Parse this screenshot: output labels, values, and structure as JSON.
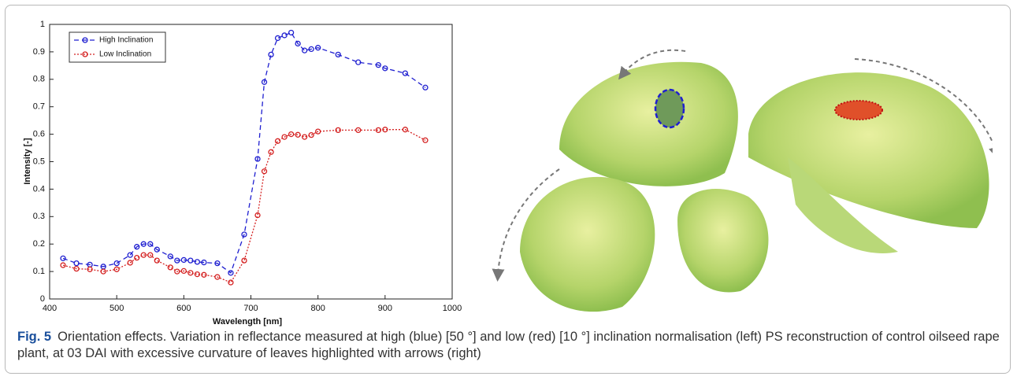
{
  "chart_data": {
    "type": "line",
    "xlabel": "Wavelength [nm]",
    "ylabel": "Intensity [-]",
    "x": [
      420,
      440,
      460,
      480,
      500,
      520,
      530,
      540,
      550,
      560,
      580,
      590,
      600,
      610,
      620,
      630,
      650,
      670,
      690,
      710,
      720,
      730,
      740,
      750,
      760,
      770,
      780,
      790,
      800,
      830,
      860,
      890,
      900,
      930,
      960
    ],
    "series": [
      {
        "name": "High Inclination",
        "color": "#1f1fd0",
        "linestyle": "dashed",
        "values": [
          0.148,
          0.13,
          0.125,
          0.118,
          0.13,
          0.16,
          0.19,
          0.2,
          0.2,
          0.18,
          0.155,
          0.14,
          0.142,
          0.14,
          0.135,
          0.133,
          0.13,
          0.095,
          0.235,
          0.51,
          0.79,
          0.89,
          0.95,
          0.96,
          0.97,
          0.93,
          0.905,
          0.91,
          0.915,
          0.89,
          0.862,
          0.852,
          0.84,
          0.822,
          0.77
        ]
      },
      {
        "name": "Low Inclination",
        "color": "#d42020",
        "linestyle": "dotted",
        "values": [
          0.123,
          0.11,
          0.108,
          0.1,
          0.108,
          0.132,
          0.15,
          0.16,
          0.16,
          0.14,
          0.115,
          0.1,
          0.102,
          0.095,
          0.09,
          0.088,
          0.08,
          0.06,
          0.14,
          0.305,
          0.465,
          0.535,
          0.575,
          0.59,
          0.6,
          0.598,
          0.59,
          0.597,
          0.61,
          0.615,
          0.615,
          0.615,
          0.617,
          0.617,
          0.578
        ]
      }
    ],
    "xlim": [
      400,
      1000
    ],
    "xticks": [
      400,
      500,
      600,
      700,
      800,
      900,
      1000
    ],
    "ylim": [
      0,
      1
    ],
    "yticks": [
      0,
      0.1,
      0.2,
      0.3,
      0.4,
      0.5,
      0.6,
      0.7,
      0.8,
      0.9,
      1
    ],
    "legend": "upper-left",
    "grid": false
  },
  "caption": {
    "label": "Fig. 5",
    "text": "Orientation effects. Variation in reflectance measured at high (blue) [50 °] and low (red) [10 °] inclination normalisation (left) PS reconstruction of control oilseed rape plant, at 03 DAI with excessive curvature of leaves highlighted with arrows (right)"
  }
}
